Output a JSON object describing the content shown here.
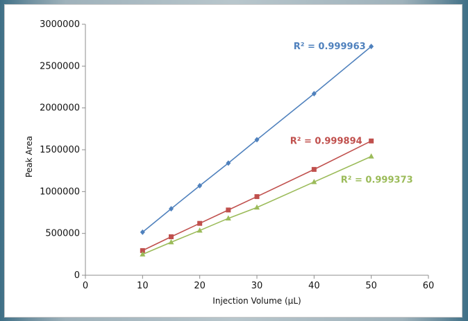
{
  "chart_data": {
    "type": "scatter",
    "title": "",
    "xlabel": "Injection Volume (µL)",
    "ylabel": "Peak Area",
    "xlim": [
      0,
      60
    ],
    "ylim": [
      0,
      3000000
    ],
    "xticks": [
      0,
      10,
      20,
      30,
      40,
      50,
      60
    ],
    "yticks": [
      0,
      500000,
      1000000,
      1500000,
      2000000,
      2500000,
      3000000
    ],
    "grid": false,
    "legend": "none",
    "series": [
      {
        "color": "#4f81bd",
        "marker": "diamond",
        "x": [
          10,
          15,
          20,
          25,
          30,
          40,
          50
        ],
        "y": [
          515000,
          795000,
          1070000,
          1340000,
          1620000,
          2170000,
          2735000
        ],
        "annotation": "R² = 0.999963"
      },
      {
        "color": "#c0504d",
        "marker": "square",
        "x": [
          10,
          15,
          20,
          25,
          30,
          40,
          50
        ],
        "y": [
          295000,
          460000,
          620000,
          780000,
          940000,
          1265000,
          1605000
        ],
        "annotation": "R² = 0.999894"
      },
      {
        "color": "#9bbb59",
        "marker": "triangle",
        "x": [
          10,
          15,
          20,
          25,
          30,
          40,
          50
        ],
        "y": [
          250000,
          395000,
          535000,
          680000,
          810000,
          1115000,
          1420000
        ],
        "annotation": "R² = 0.999373"
      }
    ]
  }
}
